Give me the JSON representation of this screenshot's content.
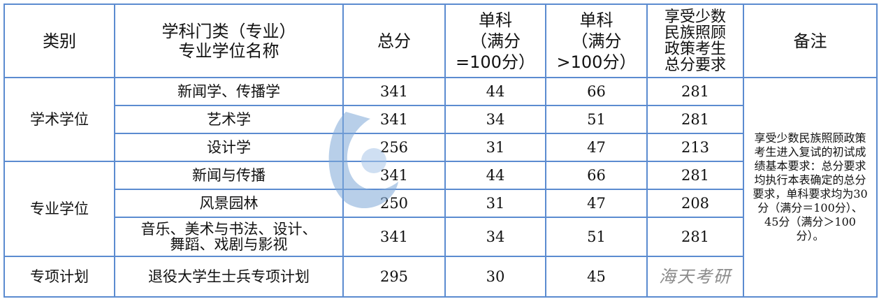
{
  "headers": [
    "类别",
    "学科门类（专业）\n专业学位名称",
    "总分",
    "单科\n（满分\n=100分）",
    "单科\n（满分\n>100分）",
    "享受少数\n民族照顾\n政策考生\n总分要求",
    "备注"
  ],
  "groups": [
    {
      "category": "学术学位",
      "rows": [
        {
          "name": "新闻学、传播学",
          "total": "341",
          "s100": "44",
          "sgt100": "66",
          "minority": "281"
        },
        {
          "name": "艺术学",
          "total": "341",
          "s100": "34",
          "sgt100": "51",
          "minority": "281"
        },
        {
          "name": "设计学",
          "total": "256",
          "s100": "31",
          "sgt100": "47",
          "minority": "213"
        }
      ]
    },
    {
      "category": "专业学位",
      "rows": [
        {
          "name": "新闻与传播",
          "total": "341",
          "s100": "44",
          "sgt100": "66",
          "minority": "281"
        },
        {
          "name": "风景园林",
          "total": "250",
          "s100": "31",
          "sgt100": "47",
          "minority": "208"
        },
        {
          "name": "音乐、美术与书法、设计、\n舞蹈、戏剧与影视",
          "total": "341",
          "s100": "34",
          "sgt100": "51",
          "minority": "281"
        }
      ]
    },
    {
      "category": "专项计划",
      "rows": [
        {
          "name": "退役大学生士兵专项计划",
          "total": "295",
          "s100": "30",
          "sgt100": "45",
          "minority": ""
        }
      ]
    }
  ],
  "note": "享受少数民族照顾政策考生进入复试的初试成绩基本要求：总分要求均执行本表确定的总分要求，单科要求均为30分（满分＝100分）、45分（满分＞100分）。",
  "watermark": "海天考研",
  "colors": {
    "border": "#5b8bd0",
    "watermark_logo": "#7fa9d8"
  }
}
